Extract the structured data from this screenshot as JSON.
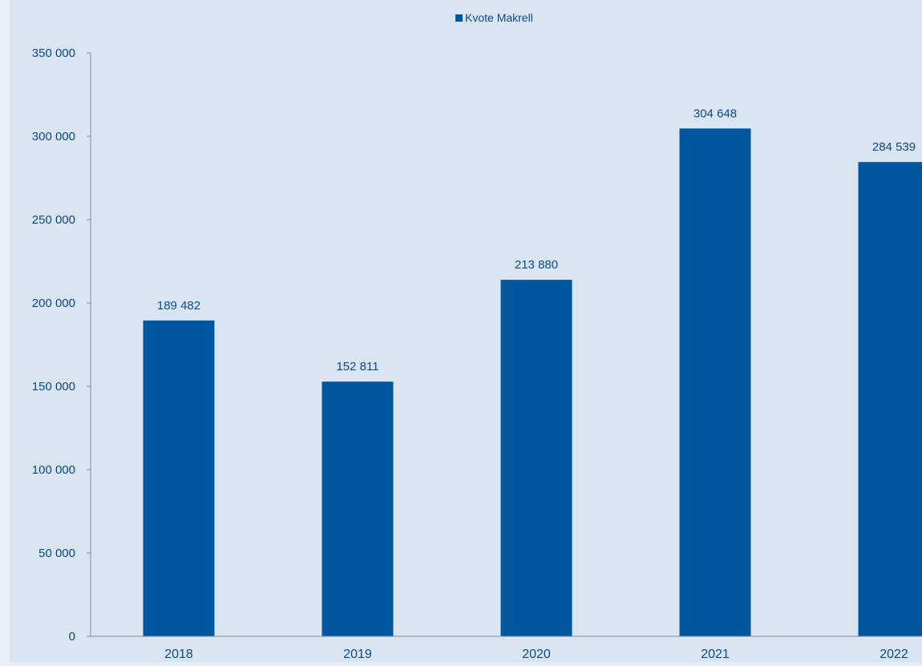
{
  "chart_data": {
    "type": "bar",
    "categories": [
      "2018",
      "2019",
      "2020",
      "2021",
      "2022"
    ],
    "series": [
      {
        "name": "Kvote Makrell",
        "values": [
          189482,
          152811,
          213880,
          304648,
          284539
        ]
      }
    ],
    "value_labels": [
      "189 482",
      "152 811",
      "213 880",
      "304 648",
      "284 539"
    ],
    "y_ticks": [
      "0",
      "50 000",
      "100 000",
      "150 000",
      "200 000",
      "250 000",
      "300 000",
      "350 000"
    ],
    "ylim": [
      0,
      350000
    ],
    "title": "",
    "xlabel": "",
    "ylabel": "",
    "grid": false,
    "legend_position": "top-center"
  },
  "colors": {
    "page_background": "#e9eff6",
    "plot_background": "#d9e5f1",
    "bar": "#0057a0",
    "text": "#0a4a8c",
    "axis": "#8c8c8c"
  }
}
